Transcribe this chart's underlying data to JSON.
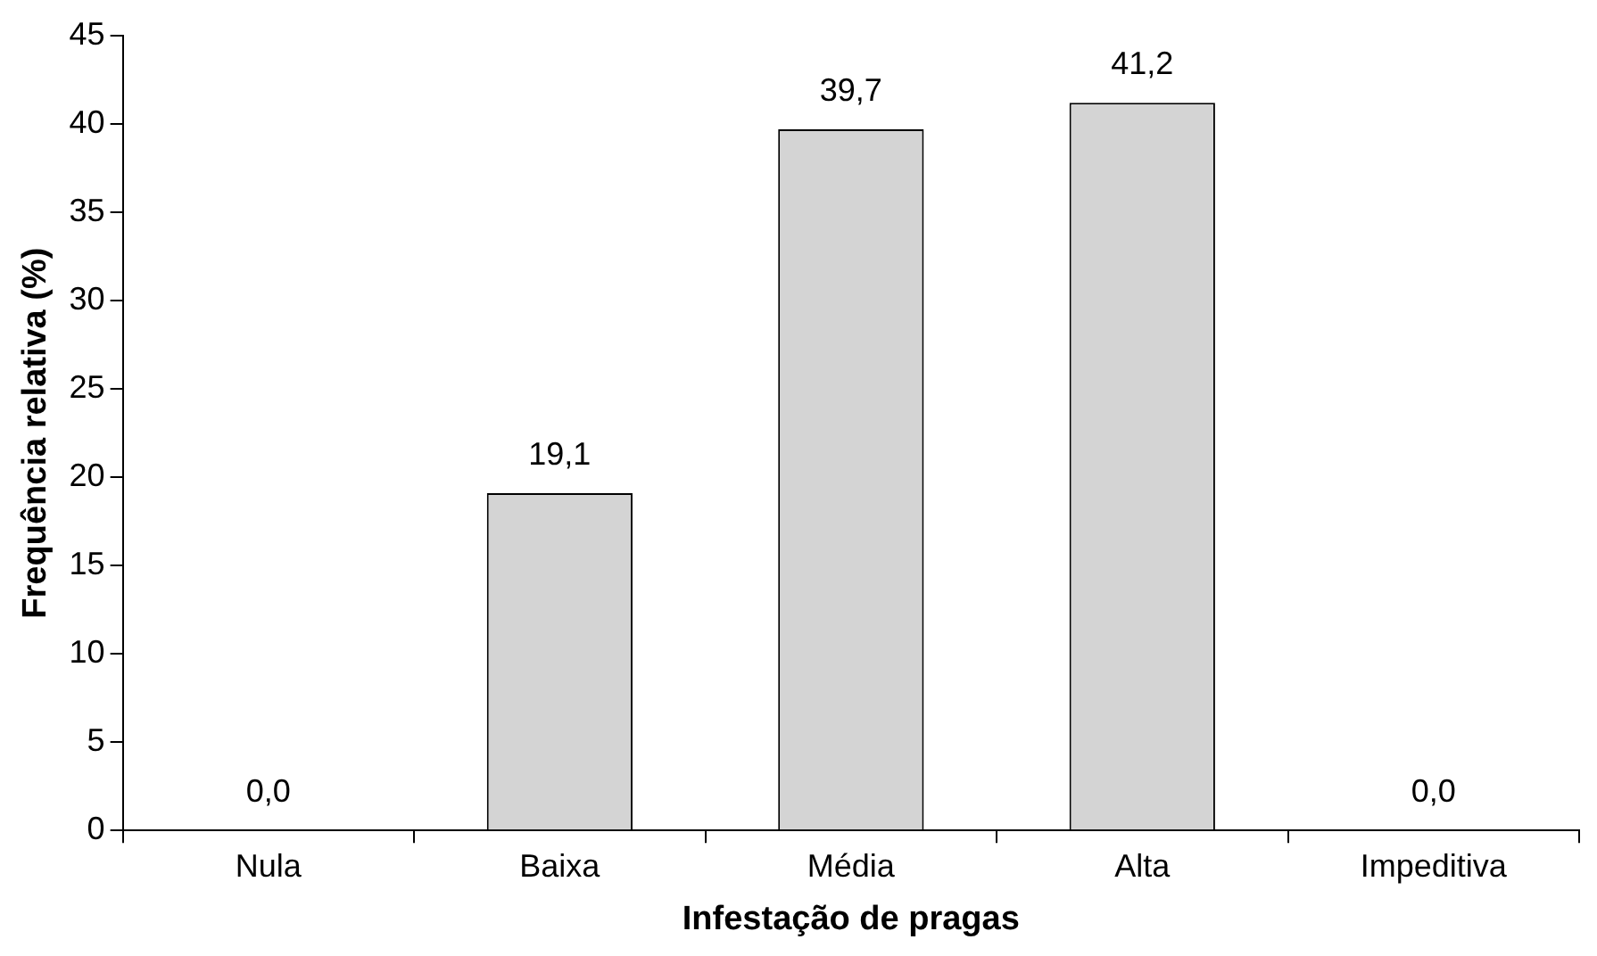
{
  "chart_data": {
    "type": "bar",
    "xlabel": "Infestação de pragas",
    "ylabel": "Frequência relativa (%)",
    "categories": [
      "Nula",
      "Baixa",
      "Média",
      "Alta",
      "Impeditiva"
    ],
    "values": [
      0.0,
      19.1,
      39.7,
      41.2,
      0.0
    ],
    "value_labels": [
      "0,0",
      "19,1",
      "39,7",
      "41,2",
      "0,0"
    ],
    "color": "#d4d4d4",
    "ylim": [
      0,
      45
    ],
    "yticks": [
      0,
      5,
      10,
      15,
      20,
      25,
      30,
      35,
      40,
      45
    ],
    "grid": false,
    "legend": false
  }
}
